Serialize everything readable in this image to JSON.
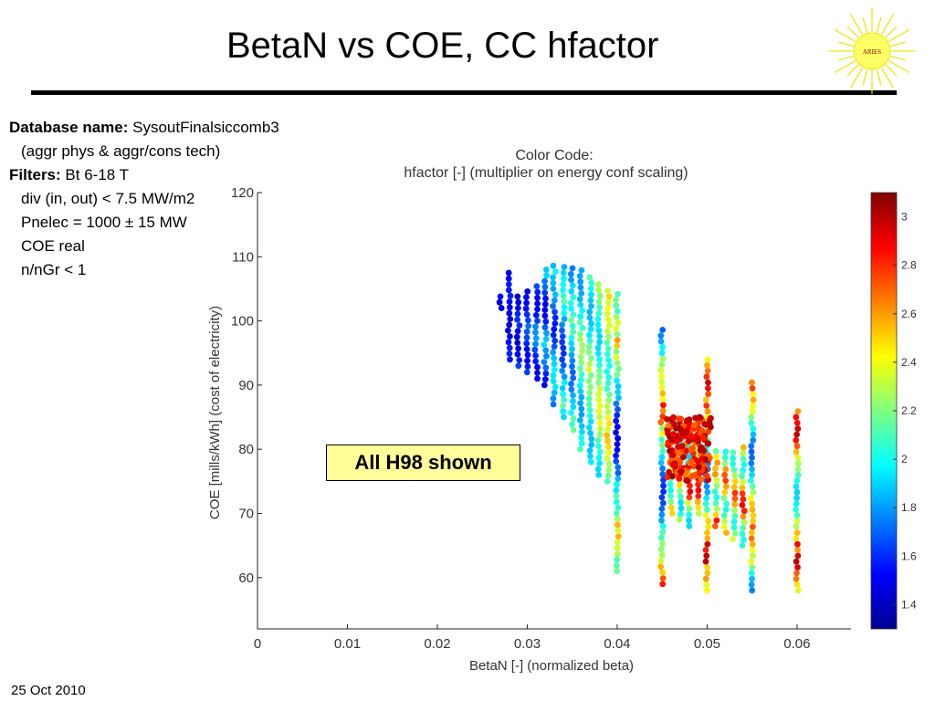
{
  "slide": {
    "title": "BetaN vs COE, CC hfactor",
    "logo_text": "ARIES",
    "date": "25 Oct 2010"
  },
  "info": {
    "db_label": "Database name:",
    "db_value": "SysoutFinalsiccomb3",
    "db_note": "(aggr phys & aggr/cons tech)",
    "filters_label": "Filters:",
    "filter_1": "Bt 6-18 T",
    "filter_2": "div (in, out) < 7.5 MW/m2",
    "filter_3": "Pnelec = 1000 ± 15 MW",
    "filter_4": "COE real",
    "filter_5": "n/nGr < 1"
  },
  "callout": "All H98 shown",
  "colors": {
    "callout_bg": "#ffff9a",
    "rule": "#000000"
  },
  "chart_data": {
    "type": "scatter",
    "title": "Color Code:",
    "subtitle": "hfactor [-] (multiplier on energy conf scaling)",
    "xlabel": "BetaN [-] (normalized beta)",
    "ylabel": "COE [mills/kWh] (cost of electricity)",
    "xlim": [
      0,
      0.066
    ],
    "ylim": [
      52,
      120
    ],
    "xticks": [
      0,
      0.01,
      0.02,
      0.03,
      0.04,
      0.05,
      0.06
    ],
    "xtick_labels": [
      "0",
      "0.01",
      "0.02",
      "0.03",
      "0.04",
      "0.05",
      "0.06"
    ],
    "yticks": [
      60,
      70,
      80,
      90,
      100,
      110,
      120
    ],
    "ytick_labels": [
      "60",
      "70",
      "80",
      "90",
      "100",
      "110",
      "120"
    ],
    "grid": false,
    "colorbar": {
      "range": [
        1.3,
        3.1
      ],
      "ticks": [
        1.4,
        1.6,
        1.8,
        2,
        2.2,
        2.4,
        2.6,
        2.8,
        3
      ],
      "tick_labels": [
        "1.4",
        "1.6",
        "1.8",
        "2",
        "2.2",
        "2.4",
        "2.6",
        "2.8",
        "3"
      ],
      "colormap": "jet"
    },
    "columns": [
      {
        "x": 0.027,
        "ymin": 102,
        "ymax": 104,
        "cmin": 1.45,
        "cmax": 1.55
      },
      {
        "x": 0.028,
        "ymin": 94,
        "ymax": 108,
        "cmin": 1.45,
        "cmax": 1.6
      },
      {
        "x": 0.029,
        "ymin": 93,
        "ymax": 104,
        "cmin": 1.45,
        "cmax": 1.65
      },
      {
        "x": 0.03,
        "ymin": 92,
        "ymax": 105,
        "cmin": 1.5,
        "cmax": 1.75
      },
      {
        "x": 0.031,
        "ymin": 91,
        "ymax": 106,
        "cmin": 1.5,
        "cmax": 1.85
      },
      {
        "x": 0.032,
        "ymin": 90,
        "ymax": 108,
        "cmin": 1.5,
        "cmax": 1.95
      },
      {
        "x": 0.033,
        "ymin": 87,
        "ymax": 109,
        "cmin": 1.55,
        "cmax": 2.05
      },
      {
        "x": 0.034,
        "ymin": 85,
        "ymax": 109,
        "cmin": 1.6,
        "cmax": 2.15
      },
      {
        "x": 0.035,
        "ymin": 83,
        "ymax": 109,
        "cmin": 1.7,
        "cmax": 2.2
      },
      {
        "x": 0.036,
        "ymin": 80,
        "ymax": 108,
        "cmin": 1.8,
        "cmax": 2.3
      },
      {
        "x": 0.037,
        "ymin": 78,
        "ymax": 107,
        "cmin": 1.85,
        "cmax": 2.4
      },
      {
        "x": 0.038,
        "ymin": 76,
        "ymax": 106,
        "cmin": 1.9,
        "cmax": 2.5
      },
      {
        "x": 0.039,
        "ymin": 75,
        "ymax": 105,
        "cmin": 2.0,
        "cmax": 2.55
      },
      {
        "x": 0.04,
        "ymin": 61,
        "ymax": 105,
        "cmin": 1.5,
        "cmax": 2.6
      },
      {
        "x": 0.045,
        "ymin": 59,
        "ymax": 99,
        "cmin": 1.6,
        "cmax": 2.9
      },
      {
        "x": 0.046,
        "ymin": 70,
        "ymax": 85,
        "cmin": 2.0,
        "cmax": 2.9
      },
      {
        "x": 0.047,
        "ymin": 69,
        "ymax": 84,
        "cmin": 1.9,
        "cmax": 3.0
      },
      {
        "x": 0.048,
        "ymin": 68,
        "ymax": 83,
        "cmin": 1.9,
        "cmax": 3.0
      },
      {
        "x": 0.049,
        "ymin": 70,
        "ymax": 83,
        "cmin": 2.2,
        "cmax": 3.05
      },
      {
        "x": 0.05,
        "ymin": 58,
        "ymax": 94,
        "cmin": 1.7,
        "cmax": 3.05
      },
      {
        "x": 0.051,
        "ymin": 68,
        "ymax": 80,
        "cmin": 2.0,
        "cmax": 2.9
      },
      {
        "x": 0.052,
        "ymin": 67,
        "ymax": 80,
        "cmin": 2.0,
        "cmax": 2.9
      },
      {
        "x": 0.053,
        "ymin": 66,
        "ymax": 80,
        "cmin": 2.0,
        "cmax": 2.9
      },
      {
        "x": 0.054,
        "ymin": 65,
        "ymax": 81,
        "cmin": 2.0,
        "cmax": 2.95
      },
      {
        "x": 0.055,
        "ymin": 58,
        "ymax": 91,
        "cmin": 1.7,
        "cmax": 3.0
      },
      {
        "x": 0.06,
        "ymin": 58,
        "ymax": 86,
        "cmin": 1.9,
        "cmax": 3.05
      }
    ],
    "clusters": [
      {
        "x_range": [
          0.0455,
          0.0505
        ],
        "y_range": [
          75,
          85
        ],
        "cmin": 2.65,
        "cmax": 3.05
      }
    ]
  }
}
